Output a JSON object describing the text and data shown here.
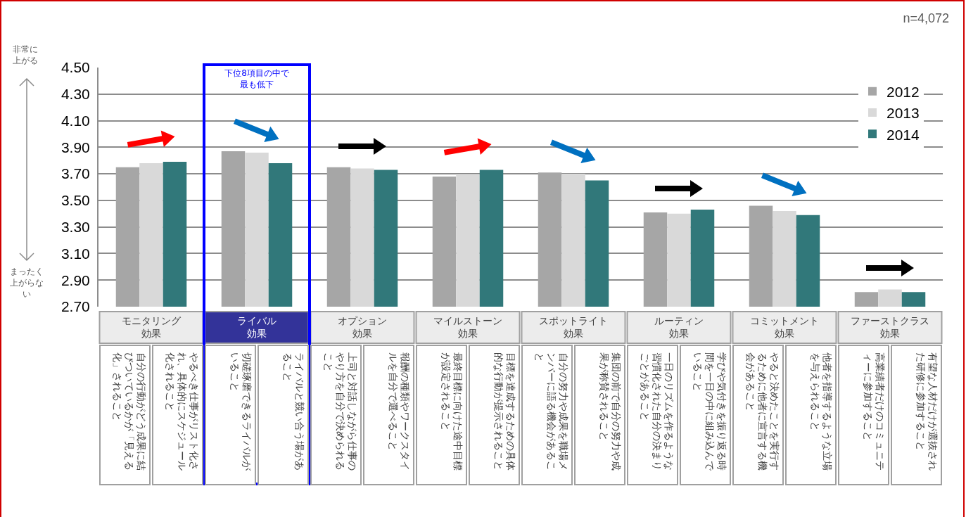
{
  "chart_data": {
    "type": "bar",
    "categories": [
      "モニタリング効果",
      "ライバル効果",
      "オプション効果",
      "マイルストーン効果",
      "スポットライト効果",
      "ルーティン効果",
      "コミットメント効果",
      "ファーストクラス効果"
    ],
    "series": [
      {
        "name": "2012",
        "color": "#a6a6a6",
        "values": [
          3.75,
          3.87,
          3.75,
          3.68,
          3.71,
          3.41,
          3.46,
          2.81
        ]
      },
      {
        "name": "2013",
        "color": "#d9d9d9",
        "values": [
          3.78,
          3.86,
          3.74,
          3.69,
          3.7,
          3.4,
          3.42,
          2.83
        ]
      },
      {
        "name": "2014",
        "color": "#31787a",
        "values": [
          3.79,
          3.78,
          3.73,
          3.73,
          3.65,
          3.43,
          3.39,
          2.81
        ]
      }
    ],
    "ylim": [
      2.7,
      4.5
    ],
    "yticks": [
      {
        "value": 2.7,
        "label": "2.70"
      },
      {
        "value": 2.9,
        "label": "2.90"
      },
      {
        "value": 3.1,
        "label": "3.10"
      },
      {
        "value": 3.3,
        "label": "3.30"
      },
      {
        "value": 3.5,
        "label": "3.50"
      },
      {
        "value": 3.7,
        "label": "3.70"
      },
      {
        "value": 3.9,
        "label": "3.90"
      },
      {
        "value": 4.1,
        "label": "4.10"
      },
      {
        "value": 4.3,
        "label": "4.30"
      },
      {
        "value": 4.5,
        "label": "4.50"
      }
    ],
    "grid": "y",
    "legend": "top right",
    "annotations": [
      "n=4,072",
      "非常に上がる",
      "まったく上がらない",
      "下位8項目の中で最も低下",
      "自分の行動がどう成果に結びついているかが「見える化」されること",
      "やるべき仕事がリスト化され、具体的にスケジュール化されること",
      "切磋琢磨できるライバルがいること",
      "ライバルと競い合う場があること",
      "上司と対話しながら仕事のやり方を自分で決められること",
      "報酬の種類やワークスタイルを自分で選べること",
      "最終目標に向けた途中目標が設定されること",
      "目標を達成するための具体的な行動が提示されること",
      "自分の努力や成果を職場メンバーに語る機会があること",
      "集団の前で自分の努力や成果が称賛されること",
      "一日のリズムを作るような習慣化された自分の決まりごとがあること",
      "学びや気付きを振り返る時間を一日の中に組み込んでいること",
      "やると決めたことを実行するために他者に宣言する機会があること",
      "他者を指導するような立場を与えられること",
      "高業績者だけのコミュニティーに参加すること",
      "有望な人材だけが選抜された研修に参加すること"
    ]
  }
}
